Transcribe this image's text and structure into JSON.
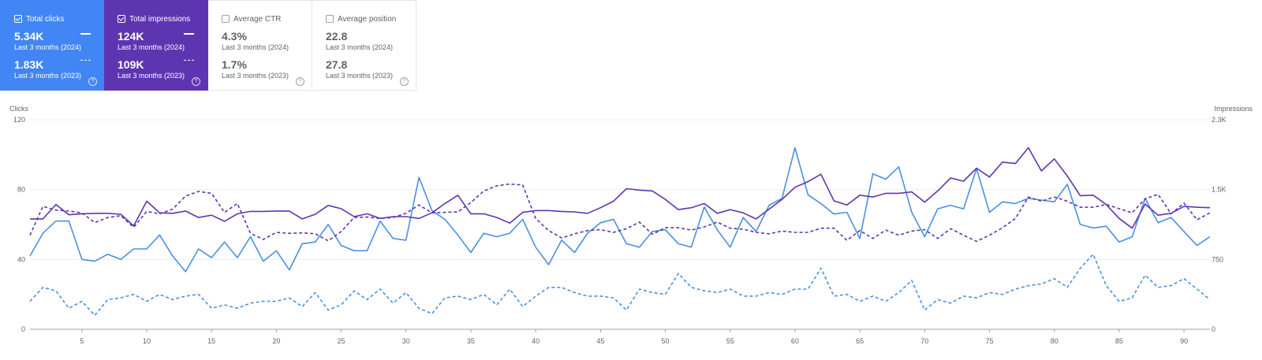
{
  "metrics": [
    {
      "label": "Total clicks",
      "selected": true,
      "value_2024": "5.34K",
      "period_2024": "Last 3 months (2024)",
      "value_2023": "1.83K",
      "period_2023": "Last 3 months (2023)",
      "color": "#4285f4"
    },
    {
      "label": "Total impressions",
      "selected": true,
      "value_2024": "124K",
      "period_2024": "Last 3 months (2024)",
      "value_2023": "109K",
      "period_2023": "Last 3 months (2023)",
      "color": "#5e35b1"
    },
    {
      "label": "Average CTR",
      "selected": false,
      "value_2024": "4.3%",
      "period_2024": "Last 3 months (2024)",
      "value_2023": "1.7%",
      "period_2023": "Last 3 months (2023)"
    },
    {
      "label": "Average position",
      "selected": false,
      "value_2024": "22.8",
      "period_2024": "Last 3 months (2024)",
      "value_2023": "27.8",
      "period_2023": "Last 3 months (2023)"
    }
  ],
  "help_icon": "?",
  "chart_data": {
    "type": "line",
    "ylabel": "Clicks",
    "y2label": "Impressions",
    "ylim": [
      0,
      120
    ],
    "y_ticks": [
      "0",
      "40",
      "80",
      "120"
    ],
    "y2lim": [
      0,
      2250
    ],
    "y2_ticks": [
      "0",
      "750",
      "1.5K",
      "2.3K"
    ],
    "xlim": [
      1,
      92
    ],
    "x_ticks": [
      "5",
      "10",
      "15",
      "20",
      "25",
      "30",
      "35",
      "40",
      "45",
      "50",
      "55",
      "60",
      "65",
      "70",
      "75",
      "80",
      "85",
      "90"
    ],
    "grid": true,
    "x": [
      1,
      2,
      3,
      4,
      5,
      6,
      7,
      8,
      9,
      10,
      11,
      12,
      13,
      14,
      15,
      16,
      17,
      18,
      19,
      20,
      21,
      22,
      23,
      24,
      25,
      26,
      27,
      28,
      29,
      30,
      31,
      32,
      33,
      34,
      35,
      36,
      37,
      38,
      39,
      40,
      41,
      42,
      43,
      44,
      45,
      46,
      47,
      48,
      49,
      50,
      51,
      52,
      53,
      54,
      55,
      56,
      57,
      58,
      59,
      60,
      61,
      62,
      63,
      64,
      65,
      66,
      67,
      68,
      69,
      70,
      71,
      72,
      73,
      74,
      75,
      76,
      77,
      78,
      79,
      80,
      81,
      82,
      83,
      84,
      85,
      86,
      87,
      88,
      89,
      90,
      91,
      92
    ],
    "series": [
      {
        "name": "Total clicks (2024)",
        "axis": "left",
        "style": "solid",
        "color": "#4a90e2",
        "values": [
          42,
          55,
          62,
          62,
          40,
          39,
          43,
          40,
          46,
          46,
          54,
          42,
          33,
          46,
          41,
          50,
          41,
          53,
          39,
          45,
          34,
          49,
          50,
          60,
          48,
          45,
          45,
          62,
          52,
          51,
          87,
          68,
          63,
          54,
          44,
          55,
          53,
          55,
          63,
          47,
          37,
          51,
          44,
          55,
          61,
          63,
          49,
          47,
          56,
          57,
          49,
          47,
          70,
          57,
          47,
          64,
          56,
          71,
          75,
          104,
          77,
          72,
          66,
          67,
          52,
          89,
          86,
          93,
          67,
          53,
          69,
          71,
          69,
          92,
          67,
          73,
          72,
          75,
          74,
          73,
          83,
          60,
          58,
          59,
          50,
          53,
          75,
          61,
          64,
          56,
          48,
          53
        ]
      },
      {
        "name": "Total clicks (2023)",
        "axis": "left",
        "style": "dashed",
        "color": "#4a90e2",
        "values": [
          16,
          24,
          22,
          12,
          16,
          8,
          17,
          18,
          20,
          16,
          20,
          17,
          19,
          20,
          12,
          14,
          12,
          15,
          16,
          16,
          18,
          13,
          21,
          11,
          14,
          22,
          17,
          23,
          15,
          21,
          12,
          9,
          18,
          19,
          17,
          20,
          14,
          23,
          13,
          19,
          24,
          24,
          21,
          19,
          19,
          18,
          11,
          23,
          21,
          20,
          32,
          24,
          22,
          21,
          23,
          19,
          19,
          21,
          20,
          23,
          23,
          35,
          19,
          20,
          16,
          19,
          16,
          21,
          28,
          11,
          17,
          15,
          19,
          18,
          21,
          20,
          23,
          25,
          26,
          29,
          24,
          35,
          43,
          25,
          16,
          18,
          31,
          24,
          25,
          29,
          23,
          17
        ]
      },
      {
        "name": "Total impressions (2024)",
        "axis": "right",
        "style": "solid",
        "color": "#5e35b1",
        "values": [
          1185,
          1185,
          1340,
          1230,
          1240,
          1245,
          1245,
          1235,
          1110,
          1375,
          1250,
          1245,
          1270,
          1200,
          1225,
          1160,
          1240,
          1265,
          1265,
          1270,
          1270,
          1185,
          1235,
          1330,
          1295,
          1210,
          1240,
          1190,
          1210,
          1210,
          1190,
          1250,
          1350,
          1440,
          1240,
          1240,
          1200,
          1140,
          1255,
          1275,
          1275,
          1265,
          1260,
          1245,
          1305,
          1375,
          1510,
          1495,
          1485,
          1395,
          1285,
          1305,
          1350,
          1245,
          1285,
          1250,
          1185,
          1290,
          1395,
          1525,
          1585,
          1665,
          1380,
          1335,
          1440,
          1420,
          1460,
          1460,
          1475,
          1365,
          1485,
          1625,
          1590,
          1730,
          1635,
          1795,
          1780,
          1950,
          1700,
          1830,
          1645,
          1435,
          1440,
          1340,
          1190,
          1085,
          1345,
          1225,
          1245,
          1320,
          1310,
          1305
        ]
      },
      {
        "name": "Total impressions (2023)",
        "axis": "right",
        "style": "dashed",
        "color": "#5e35b1",
        "values": [
          1010,
          1320,
          1280,
          1270,
          1250,
          1145,
          1200,
          1220,
          1095,
          1265,
          1240,
          1290,
          1430,
          1480,
          1460,
          1255,
          1350,
          1030,
          965,
          1040,
          1030,
          1035,
          1025,
          950,
          1050,
          1200,
          1205,
          1190,
          1200,
          1245,
          1335,
          1250,
          1255,
          1260,
          1360,
          1485,
          1540,
          1560,
          1550,
          1190,
          1060,
          980,
          1025,
          1060,
          1070,
          1040,
          1080,
          1150,
          1020,
          1090,
          1090,
          1065,
          1100,
          1150,
          1085,
          1075,
          1040,
          1025,
          1055,
          1040,
          1040,
          1085,
          1085,
          955,
          1060,
          975,
          1065,
          1010,
          1055,
          1070,
          975,
          1080,
          1010,
          945,
          1010,
          1090,
          1190,
          1420,
          1375,
          1420,
          1375,
          1310,
          1310,
          1340,
          1295,
          1250,
          1400,
          1450,
          1240,
          1355,
          1175,
          1250
        ]
      }
    ]
  }
}
